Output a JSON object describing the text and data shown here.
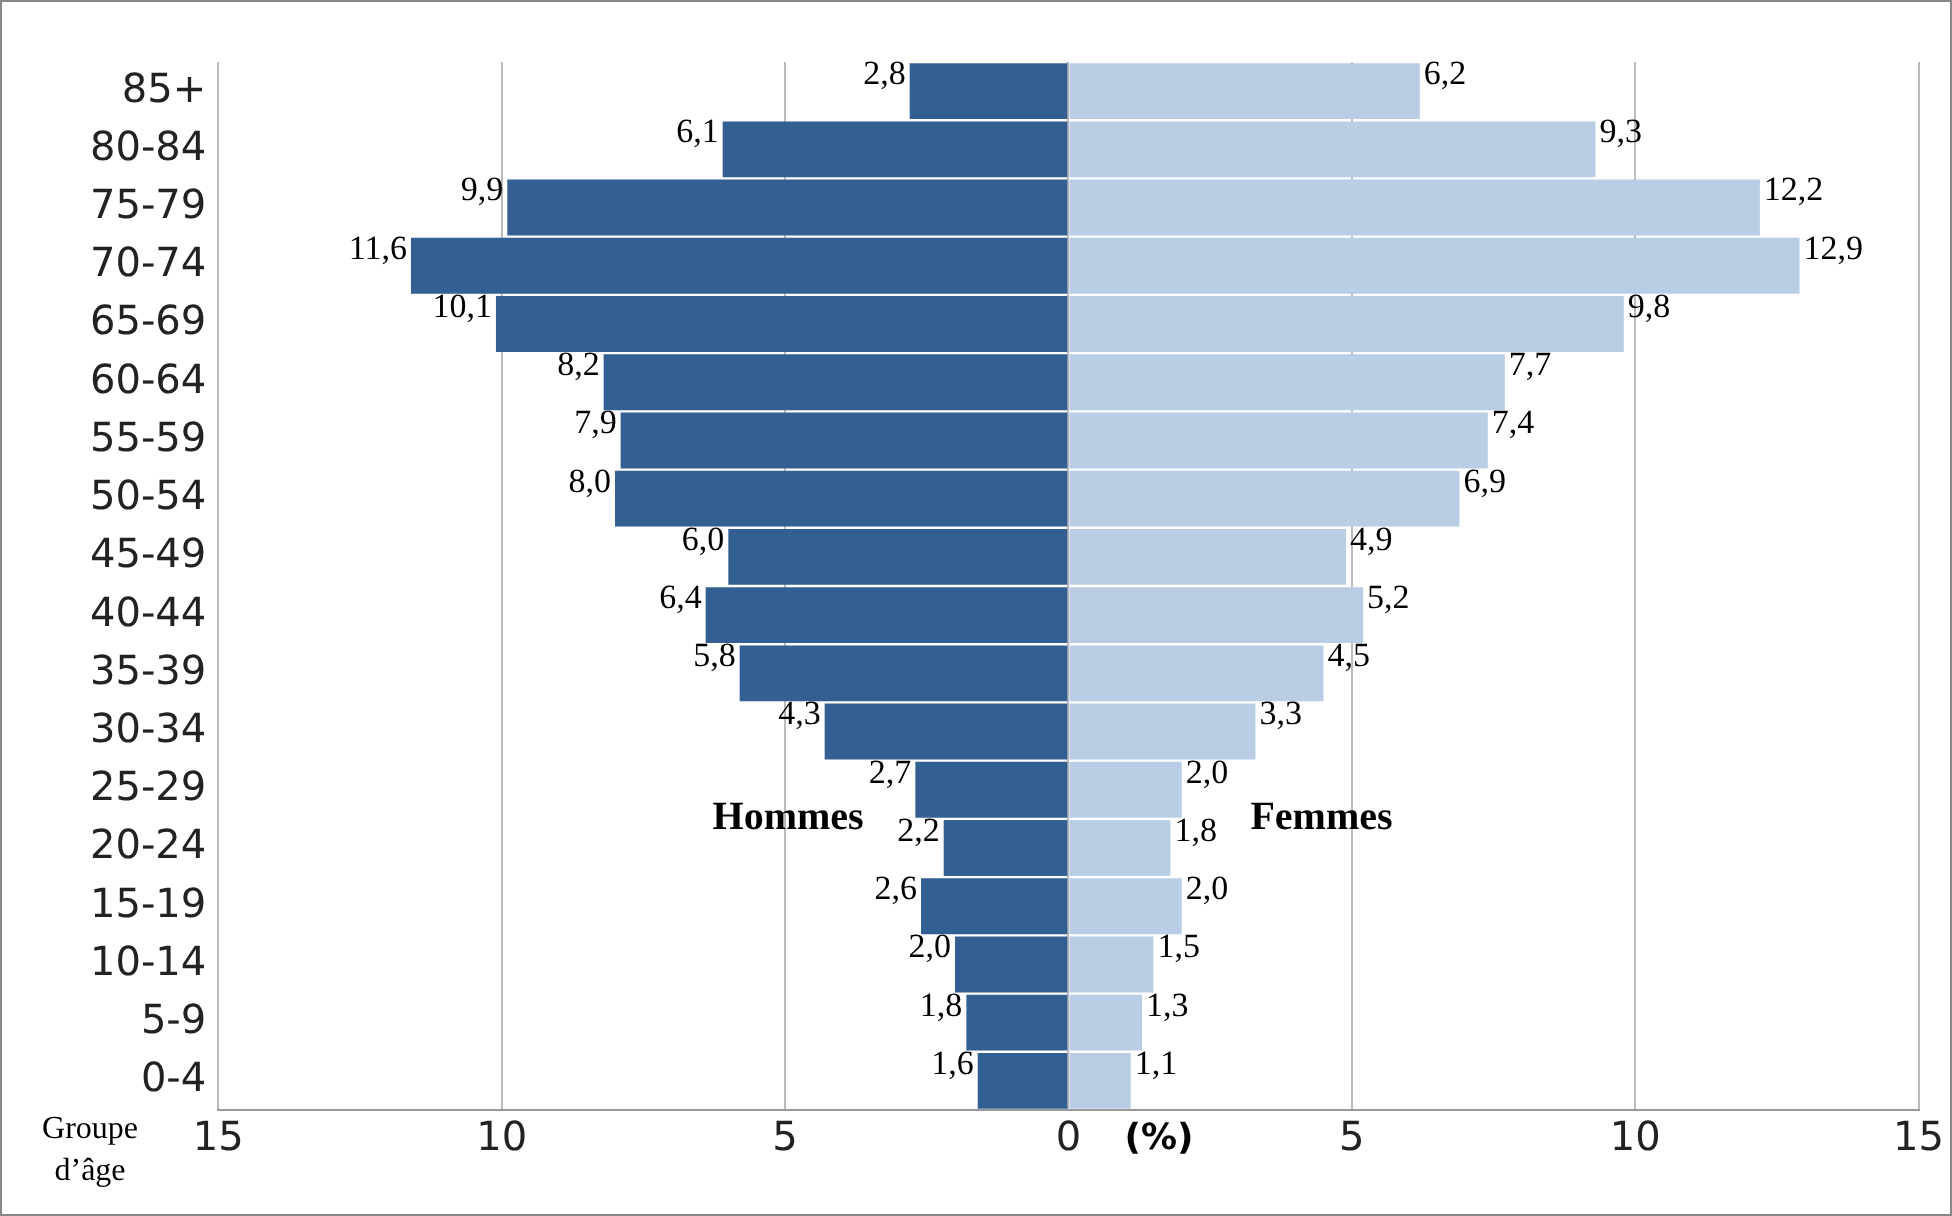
{
  "chart_data": {
    "type": "bar",
    "orientation": "horizontal",
    "xlabel": "(%)",
    "ylabel": "Groupe d’âge",
    "categories": [
      "85+",
      "80-84",
      "75-79",
      "70-74",
      "65-69",
      "60-64",
      "55-59",
      "50-54",
      "45-49",
      "40-44",
      "35-39",
      "30-34",
      "25-29",
      "20-24",
      "15-19",
      "10-14",
      "5-9",
      "0-4"
    ],
    "series": [
      {
        "name": "Hommes",
        "color": "#335f93",
        "values": [
          2.8,
          6.1,
          9.9,
          11.6,
          10.1,
          8.2,
          7.9,
          8.0,
          6.0,
          6.4,
          5.8,
          4.3,
          2.7,
          2.2,
          2.6,
          2.0,
          1.8,
          1.6
        ],
        "base": [
          -2.8,
          -6.1,
          -9.9,
          -11.6,
          -10.1,
          -8.2,
          -7.9,
          -8.0,
          -6.0,
          -6.4,
          -5.8,
          -4.3,
          -2.7,
          -2.2,
          -2.6,
          -2.0,
          -1.8,
          -1.6
        ],
        "value_labels": [
          "2,8",
          "6,1",
          "9,9",
          "11,6",
          "10,1",
          "8,2",
          "7,9",
          "8,0",
          "6,0",
          "6,4",
          "5,8",
          "4,3",
          "2,7",
          "2,2",
          "2,6",
          "2,0",
          "1,8",
          "1,6"
        ]
      },
      {
        "name": "Femmes",
        "color": "#b9cde5",
        "values": [
          6.2,
          9.3,
          12.2,
          12.9,
          9.8,
          7.7,
          7.4,
          6.9,
          4.9,
          5.2,
          4.5,
          3.3,
          2.0,
          1.8,
          2.0,
          1.5,
          1.3,
          1.1
        ],
        "value_labels": [
          "6,2",
          "9,3",
          "12,2",
          "12,9",
          "9,8",
          "7,7",
          "7,4",
          "6,9",
          "4,9",
          "5,2",
          "4,5",
          "3,3",
          "2,0",
          "1,8",
          "2,0",
          "1,5",
          "1,3",
          "1,1"
        ]
      }
    ],
    "xlim": [
      -15,
      15
    ],
    "xticks": [
      {
        "value": -15,
        "label": "15"
      },
      {
        "value": -10,
        "label": "10"
      },
      {
        "value": -5,
        "label": "5"
      },
      0,
      5,
      10,
      15
    ],
    "grid": "x",
    "legend": false
  }
}
